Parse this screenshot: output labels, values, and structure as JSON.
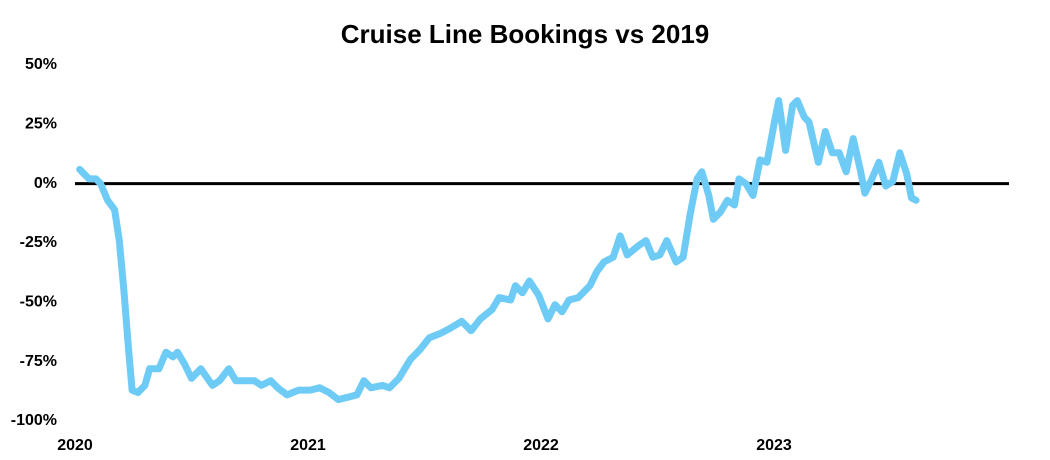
{
  "chart_data": {
    "type": "line",
    "title": "Cruise Line Bookings vs 2019",
    "x": [
      2020.02,
      2020.06,
      2020.09,
      2020.11,
      2020.14,
      2020.17,
      2020.19,
      2020.21,
      2020.23,
      2020.245,
      2020.27,
      2020.3,
      2020.32,
      2020.36,
      2020.39,
      2020.42,
      2020.44,
      2020.47,
      2020.5,
      2020.54,
      2020.59,
      2020.62,
      2020.66,
      2020.69,
      2020.73,
      2020.77,
      2020.8,
      2020.84,
      2020.87,
      2020.91,
      2020.96,
      2021.01,
      2021.05,
      2021.09,
      2021.13,
      2021.17,
      2021.21,
      2021.24,
      2021.27,
      2021.32,
      2021.35,
      2021.39,
      2021.44,
      2021.48,
      2021.52,
      2021.57,
      2021.61,
      2021.66,
      2021.7,
      2021.74,
      2021.79,
      2021.82,
      2021.87,
      2021.89,
      2021.92,
      2021.95,
      2021.99,
      2022.03,
      2022.06,
      2022.09,
      2022.12,
      2022.16,
      2022.21,
      2022.24,
      2022.27,
      2022.31,
      2022.34,
      2022.37,
      2022.42,
      2022.45,
      2022.48,
      2022.51,
      2022.54,
      2022.58,
      2022.61,
      2022.64,
      2022.67,
      2022.69,
      2022.72,
      2022.74,
      2022.77,
      2022.8,
      2022.83,
      2022.85,
      2022.88,
      2022.91,
      2022.94,
      2022.97,
      2023.0,
      2023.02,
      2023.05,
      2023.08,
      2023.1,
      2023.13,
      2023.15,
      2023.19,
      2023.22,
      2023.25,
      2023.28,
      2023.31,
      2023.34,
      2023.37,
      2023.39,
      2023.42,
      2023.45,
      2023.48,
      2023.51,
      2023.54,
      2023.57,
      2023.59,
      2023.61
    ],
    "series": [
      {
        "name": "Bookings vs 2019",
        "color": "#6ecbf5",
        "values": [
          6,
          2,
          2,
          0,
          -7,
          -11,
          -24,
          -45,
          -70,
          -87,
          -88,
          -85,
          -78,
          -78,
          -71,
          -73,
          -71,
          -76,
          -82,
          -78,
          -85,
          -83,
          -78,
          -83,
          -83,
          -83,
          -85,
          -83,
          -86,
          -89,
          -87,
          -87,
          -86,
          -88,
          -91,
          -90,
          -89,
          -83,
          -86,
          -85,
          -86,
          -82,
          -74,
          -70,
          -65,
          -63,
          -61,
          -58,
          -62,
          -57,
          -53,
          -48,
          -49,
          -43,
          -46,
          -41,
          -47,
          -57,
          -51,
          -54,
          -49,
          -48,
          -43,
          -37,
          -33,
          -31,
          -22,
          -30,
          -26,
          -24,
          -31,
          -30,
          -24,
          -33,
          -31,
          -13,
          2,
          5,
          -5,
          -15,
          -12,
          -7,
          -9,
          2,
          0,
          -5,
          10,
          9,
          25,
          35,
          14,
          33,
          35,
          28,
          26,
          9,
          22,
          13,
          13,
          5,
          19,
          6,
          -4,
          2,
          9,
          -1,
          1,
          13,
          4,
          -6,
          -7
        ]
      }
    ],
    "xlim": [
      2020,
      2024
    ],
    "xticks": [
      2020,
      2021,
      2022,
      2023
    ],
    "ylim": [
      -100,
      50
    ],
    "yticks": [
      {
        "value": -100,
        "label": "-100%"
      },
      {
        "value": -75,
        "label": "-75%"
      },
      {
        "value": -50,
        "label": "-50%"
      },
      {
        "value": -25,
        "label": "-25%"
      },
      {
        "value": 0,
        "label": "0%"
      },
      {
        "value": 25,
        "label": "25%"
      },
      {
        "value": 50,
        "label": "50%"
      }
    ],
    "zero_line": true
  }
}
